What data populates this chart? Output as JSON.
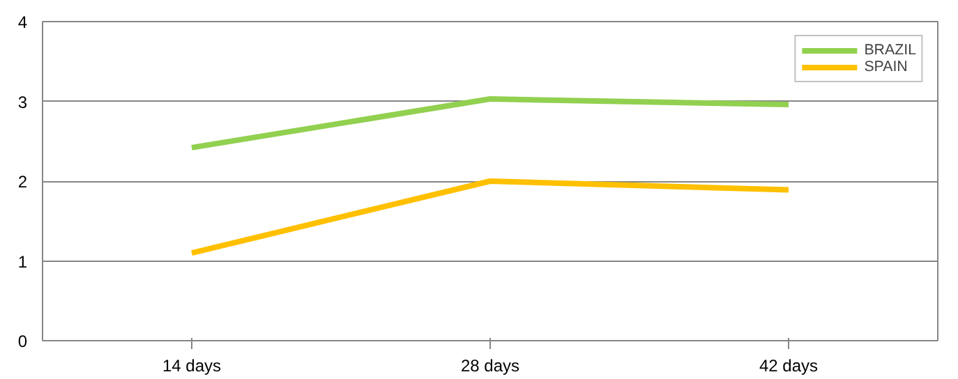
{
  "chart_data": {
    "type": "line",
    "categories": [
      "14 days",
      "28 days",
      "42 days"
    ],
    "series": [
      {
        "name": "BRAZIL",
        "color": "#92d050",
        "values": [
          2.42,
          3.03,
          2.96
        ]
      },
      {
        "name": "SPAIN",
        "color": "#ffc000",
        "values": [
          1.1,
          2.0,
          1.89
        ]
      }
    ],
    "ylim": [
      0,
      4
    ],
    "yticks": [
      0,
      1,
      2,
      3,
      4
    ],
    "grid": "y",
    "legend": "top right",
    "marker": "none",
    "line_style": "solid"
  }
}
